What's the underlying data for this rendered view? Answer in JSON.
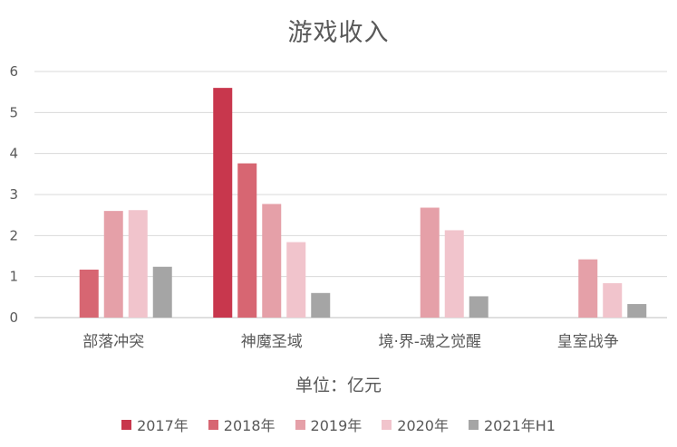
{
  "chart_data": {
    "type": "bar",
    "title": "游戏收入",
    "xlabel": "单位：亿元",
    "ylabel": "",
    "ylim": [
      0,
      6
    ],
    "yticks": [
      0,
      1,
      2,
      3,
      4,
      5,
      6
    ],
    "grid": true,
    "legend_position": "bottom",
    "categories": [
      "部落冲突",
      "神魔圣域",
      "境·界-魂之觉醒",
      "皇室战争"
    ],
    "series": [
      {
        "name": "2017年",
        "color": "#c8374d",
        "values": [
          null,
          5.6,
          null,
          null
        ]
      },
      {
        "name": "2018年",
        "color": "#d76672",
        "values": [
          1.17,
          3.76,
          null,
          null
        ]
      },
      {
        "name": "2019年",
        "color": "#e5a0a8",
        "values": [
          2.6,
          2.77,
          2.68,
          1.42
        ]
      },
      {
        "name": "2020年",
        "color": "#f1c4cc",
        "values": [
          2.62,
          1.84,
          2.13,
          0.84
        ]
      },
      {
        "name": "2021年H1",
        "color": "#a5a5a5",
        "values": [
          1.24,
          0.6,
          0.52,
          0.33
        ]
      }
    ]
  }
}
